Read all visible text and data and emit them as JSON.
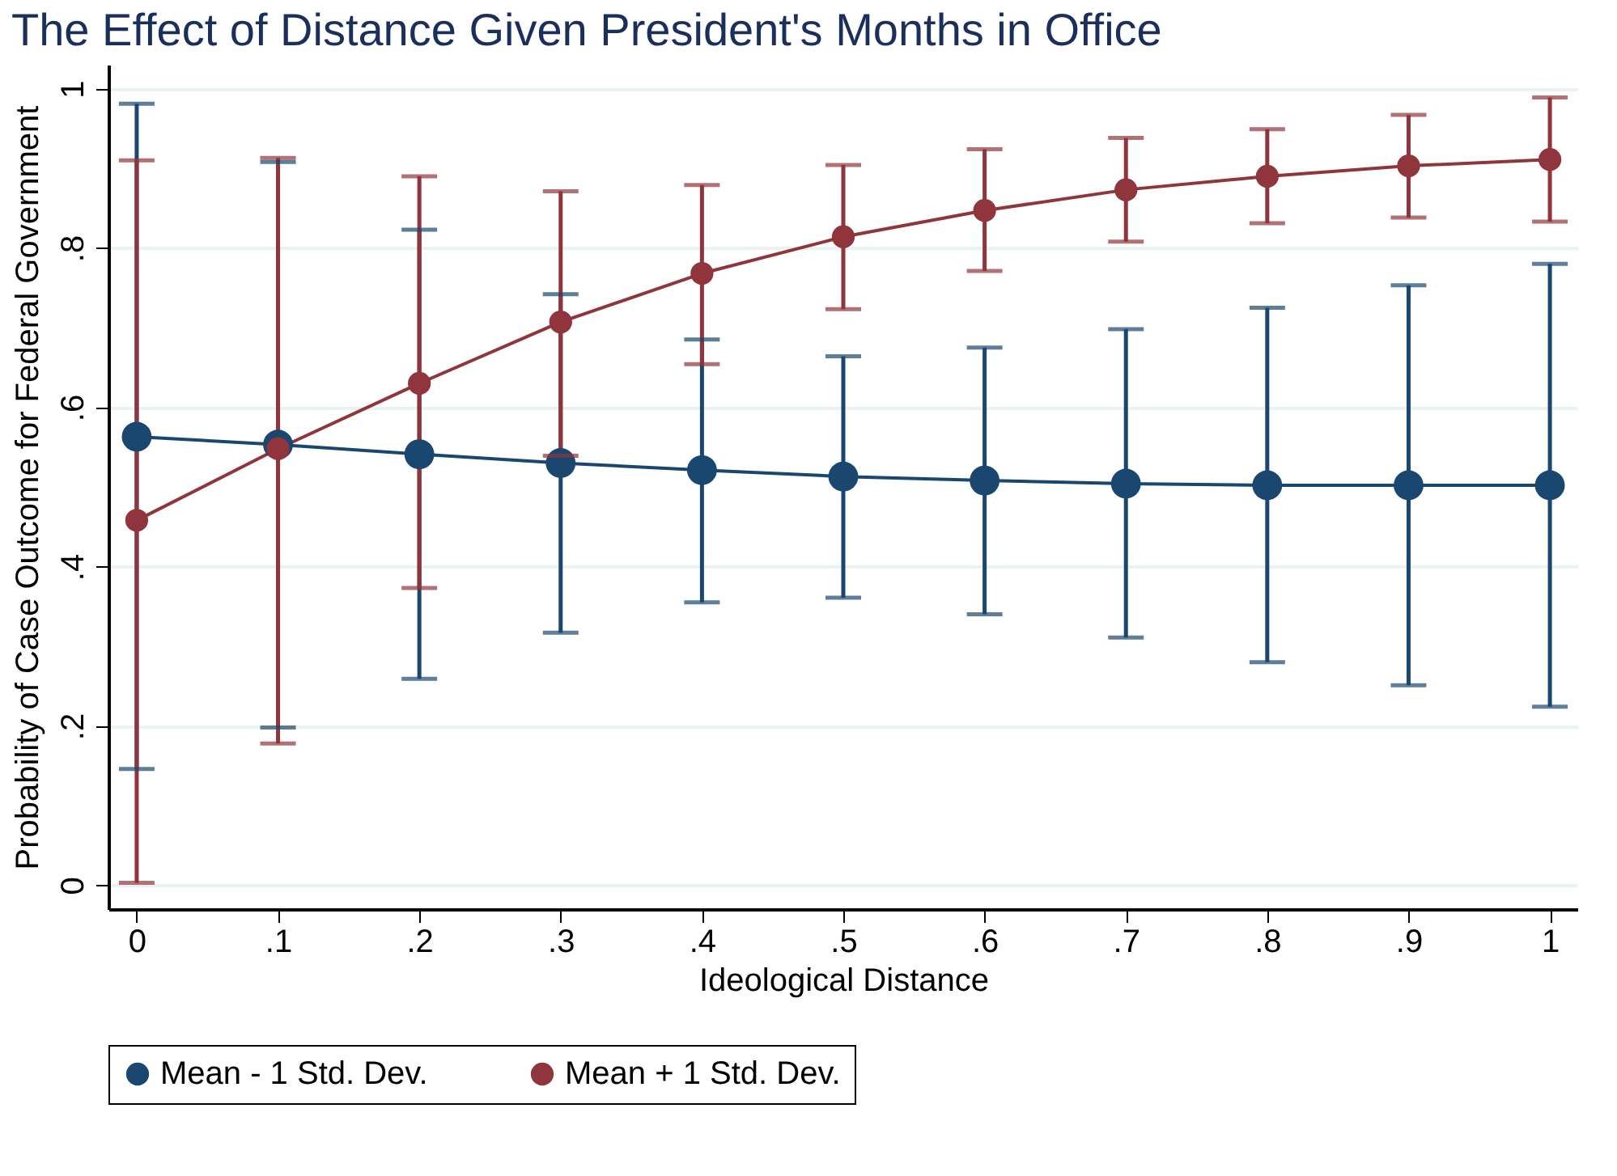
{
  "chart_data": {
    "type": "line",
    "title": "The Effect of Distance Given President's Months in Office",
    "xlabel": "Ideological Distance",
    "ylabel": "Probability of Case Outcome for Federal Government",
    "x": [
      0,
      0.1,
      0.2,
      0.3,
      0.4,
      0.5,
      0.6,
      0.7,
      0.8,
      0.9,
      1
    ],
    "xlim": [
      -0.02,
      1.02
    ],
    "xticks": [
      0,
      {
        "value": 0.1,
        "label": ".1"
      },
      {
        "value": 0.2,
        "label": ".2"
      },
      {
        "value": 0.3,
        "label": ".3"
      },
      {
        "value": 0.4,
        "label": ".4"
      },
      {
        "value": 0.5,
        "label": ".5"
      },
      {
        "value": 0.6,
        "label": ".6"
      },
      {
        "value": 0.7,
        "label": ".7"
      },
      {
        "value": 0.8,
        "label": ".8"
      },
      {
        "value": 0.9,
        "label": ".9"
      },
      1
    ],
    "ylim": [
      -0.03,
      1.03
    ],
    "yticks": [
      0,
      {
        "value": 0.2,
        "label": ".2"
      },
      {
        "value": 0.4,
        "label": ".4"
      },
      {
        "value": 0.6,
        "label": ".6"
      },
      {
        "value": 0.8,
        "label": ".8"
      },
      1
    ],
    "grid": "y",
    "legend": "bottom",
    "marker": "circle",
    "line_style": "solid",
    "series": [
      {
        "name": "Mean - 1 Std. Dev.",
        "color": "#1a476f",
        "values": [
          0.563,
          0.553,
          0.541,
          0.53,
          0.521,
          0.513,
          0.508,
          0.504,
          0.502,
          0.502,
          0.502
        ],
        "errors": [
          [
            0.146,
            0.981
          ],
          [
            0.198,
            0.908
          ],
          [
            0.259,
            0.823
          ],
          [
            0.317,
            0.742
          ],
          [
            0.355,
            0.685
          ],
          [
            0.361,
            0.664
          ],
          [
            0.34,
            0.675
          ],
          [
            0.311,
            0.698
          ],
          [
            0.28,
            0.725
          ],
          [
            0.251,
            0.753
          ],
          [
            0.224,
            0.78
          ]
        ]
      },
      {
        "name": "Mean + 1 Std. Dev.",
        "color": "#90353b",
        "values": [
          0.458,
          0.548,
          0.63,
          0.707,
          0.768,
          0.814,
          0.847,
          0.873,
          0.89,
          0.903,
          0.911
        ],
        "errors": [
          [
            0.003,
            0.91
          ],
          [
            0.178,
            0.913
          ],
          [
            0.373,
            0.89
          ],
          [
            0.539,
            0.871
          ],
          [
            0.654,
            0.879
          ],
          [
            0.723,
            0.904
          ],
          [
            0.771,
            0.924
          ],
          [
            0.808,
            0.938
          ],
          [
            0.831,
            0.949
          ],
          [
            0.838,
            0.967
          ],
          [
            0.833,
            0.989
          ]
        ]
      }
    ]
  }
}
